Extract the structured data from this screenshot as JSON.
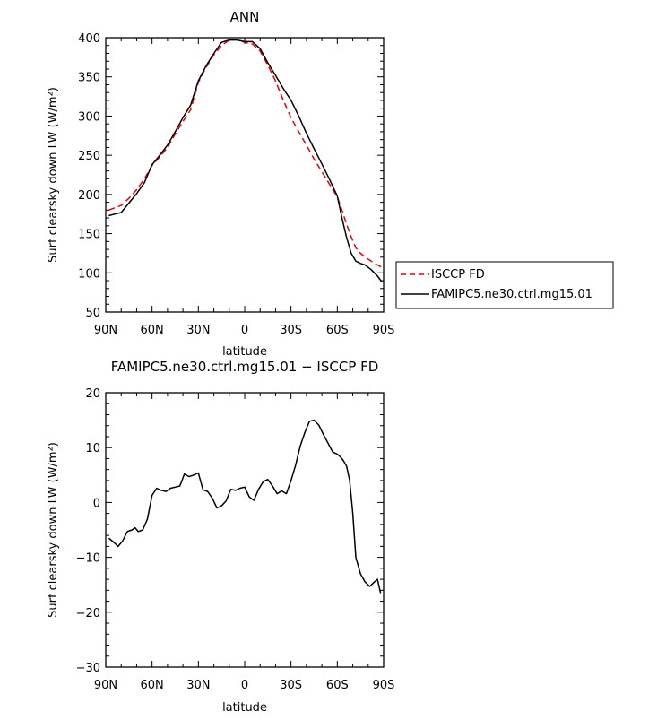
{
  "chart_data": [
    {
      "type": "line",
      "title": "ANN",
      "xlabel": "latitude",
      "ylabel": "Surf clearsky down LW (W/m²)",
      "xlim": [
        90,
        -90
      ],
      "ylim": [
        50,
        400
      ],
      "x_tick_labels": [
        "90N",
        "60N",
        "30N",
        "0",
        "30S",
        "60S",
        "90S"
      ],
      "x_tick_values": [
        90,
        60,
        30,
        0,
        -30,
        -60,
        -90
      ],
      "y_ticks": [
        50,
        100,
        150,
        200,
        250,
        300,
        350,
        400
      ],
      "legend_placement": "outside-right",
      "series": [
        {
          "name": "ISCCP FD",
          "color": "#e8000b",
          "dash": "dashed",
          "x": [
            88,
            84,
            80,
            75,
            70,
            65,
            60,
            55,
            50,
            45,
            40,
            35,
            30,
            25,
            20,
            15,
            10,
            5,
            0,
            -5,
            -10,
            -15,
            -20,
            -25,
            -30,
            -35,
            -40,
            -45,
            -50,
            -55,
            -60,
            -63,
            -66,
            -69,
            -72,
            -75,
            -78,
            -82,
            -86,
            -89
          ],
          "y": [
            180,
            183,
            186,
            195,
            206,
            220,
            237,
            248,
            260,
            277,
            293,
            308,
            343,
            362,
            378,
            390,
            397,
            398,
            394,
            392,
            383,
            365,
            345,
            320,
            298,
            280,
            263,
            245,
            229,
            213,
            197,
            180,
            162,
            146,
            132,
            125,
            120,
            115,
            110,
            107
          ]
        },
        {
          "name": "FAMIPC5.ne30.ctrl.mg15.01",
          "color": "#000000",
          "dash": "solid",
          "x": [
            88,
            84,
            80,
            75,
            70,
            65,
            60,
            55,
            50,
            45,
            40,
            35,
            30,
            25,
            20,
            15,
            10,
            5,
            0,
            -5,
            -10,
            -15,
            -20,
            -25,
            -30,
            -35,
            -40,
            -45,
            -50,
            -55,
            -60,
            -63,
            -66,
            -69,
            -72,
            -75,
            -78,
            -82,
            -86,
            -89
          ],
          "y": [
            173,
            175,
            177,
            189,
            201,
            215,
            238,
            250,
            263,
            280,
            298,
            314,
            345,
            364,
            380,
            394,
            397,
            397,
            395,
            395,
            386,
            368,
            352,
            335,
            320,
            300,
            278,
            258,
            239,
            219,
            198,
            170,
            145,
            125,
            115,
            112,
            110,
            104,
            96,
            88
          ]
        }
      ]
    },
    {
      "type": "line",
      "title": "FAMIPC5.ne30.ctrl.mg15.01 − ISCCP FD",
      "xlabel": "latitude",
      "ylabel": "Surf clearsky down LW (W/m²)",
      "xlim": [
        90,
        -90
      ],
      "ylim": [
        -30,
        20
      ],
      "x_tick_labels": [
        "90N",
        "60N",
        "30N",
        "0",
        "30S",
        "60S",
        "90S"
      ],
      "x_tick_values": [
        90,
        60,
        30,
        0,
        -30,
        -60,
        -90
      ],
      "y_ticks": [
        -30,
        -20,
        -10,
        0,
        10,
        20
      ],
      "series": [
        {
          "color": "#000000",
          "dash": "solid",
          "x": [
            88,
            85,
            82,
            79,
            76,
            73,
            71,
            69,
            66,
            63,
            60,
            57,
            54,
            51,
            48,
            45,
            42,
            39,
            36,
            33,
            30,
            27,
            24,
            21,
            18,
            15,
            12,
            9,
            6,
            3,
            0,
            -3,
            -6,
            -9,
            -12,
            -15,
            -18,
            -21,
            -24,
            -27,
            -30,
            -33,
            -36,
            -39,
            -42,
            -45,
            -48,
            -51,
            -54,
            -57,
            -60,
            -62,
            -64,
            -66,
            -68,
            -70,
            -72,
            -75,
            -78,
            -81,
            -84,
            -86,
            -88
          ],
          "y": [
            -6.5,
            -7.2,
            -8.0,
            -7.0,
            -5.3,
            -5.0,
            -4.6,
            -5.3,
            -5.0,
            -3.0,
            1.3,
            2.6,
            2.2,
            2.0,
            2.6,
            2.8,
            3.0,
            5.2,
            4.7,
            5.0,
            5.4,
            2.3,
            2.0,
            0.8,
            -1.0,
            -0.6,
            0.3,
            2.4,
            2.2,
            2.6,
            2.8,
            1.0,
            0.4,
            2.4,
            3.8,
            4.2,
            3.0,
            1.6,
            2.1,
            1.6,
            4.0,
            6.8,
            10.3,
            12.8,
            14.8,
            15.0,
            14.1,
            12.4,
            10.8,
            9.2,
            8.8,
            8.3,
            7.6,
            6.6,
            4.0,
            -2.0,
            -10.0,
            -13.0,
            -14.5,
            -15.3,
            -14.5,
            -14.0,
            -16.5
          ]
        }
      ]
    }
  ]
}
